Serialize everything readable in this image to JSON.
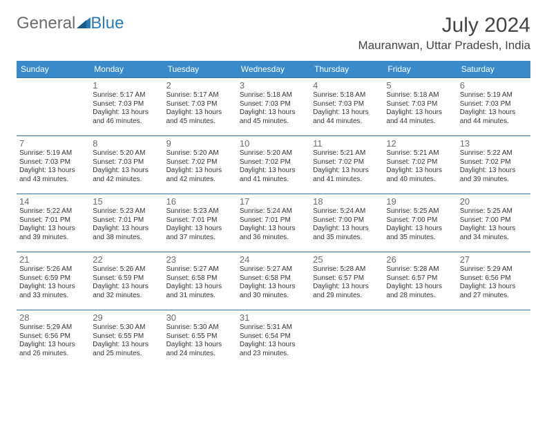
{
  "logo": {
    "text1": "General",
    "text2": "Blue"
  },
  "title": "July 2024",
  "location": "Mauranwan, Uttar Pradesh, India",
  "dayHeaders": [
    "Sunday",
    "Monday",
    "Tuesday",
    "Wednesday",
    "Thursday",
    "Friday",
    "Saturday"
  ],
  "colors": {
    "header_bg": "#3a8ac9",
    "header_text": "#ffffff",
    "border": "#2f6fa3",
    "daynum": "#6b6b6b",
    "logo_blue": "#2a7ab8"
  },
  "weeks": [
    [
      {
        "day": "",
        "sunrise": "",
        "sunset": "",
        "daylight": ""
      },
      {
        "day": "1",
        "sunrise": "Sunrise: 5:17 AM",
        "sunset": "Sunset: 7:03 PM",
        "daylight": "Daylight: 13 hours and 46 minutes."
      },
      {
        "day": "2",
        "sunrise": "Sunrise: 5:17 AM",
        "sunset": "Sunset: 7:03 PM",
        "daylight": "Daylight: 13 hours and 45 minutes."
      },
      {
        "day": "3",
        "sunrise": "Sunrise: 5:18 AM",
        "sunset": "Sunset: 7:03 PM",
        "daylight": "Daylight: 13 hours and 45 minutes."
      },
      {
        "day": "4",
        "sunrise": "Sunrise: 5:18 AM",
        "sunset": "Sunset: 7:03 PM",
        "daylight": "Daylight: 13 hours and 44 minutes."
      },
      {
        "day": "5",
        "sunrise": "Sunrise: 5:18 AM",
        "sunset": "Sunset: 7:03 PM",
        "daylight": "Daylight: 13 hours and 44 minutes."
      },
      {
        "day": "6",
        "sunrise": "Sunrise: 5:19 AM",
        "sunset": "Sunset: 7:03 PM",
        "daylight": "Daylight: 13 hours and 44 minutes."
      }
    ],
    [
      {
        "day": "7",
        "sunrise": "Sunrise: 5:19 AM",
        "sunset": "Sunset: 7:03 PM",
        "daylight": "Daylight: 13 hours and 43 minutes."
      },
      {
        "day": "8",
        "sunrise": "Sunrise: 5:20 AM",
        "sunset": "Sunset: 7:03 PM",
        "daylight": "Daylight: 13 hours and 42 minutes."
      },
      {
        "day": "9",
        "sunrise": "Sunrise: 5:20 AM",
        "sunset": "Sunset: 7:02 PM",
        "daylight": "Daylight: 13 hours and 42 minutes."
      },
      {
        "day": "10",
        "sunrise": "Sunrise: 5:20 AM",
        "sunset": "Sunset: 7:02 PM",
        "daylight": "Daylight: 13 hours and 41 minutes."
      },
      {
        "day": "11",
        "sunrise": "Sunrise: 5:21 AM",
        "sunset": "Sunset: 7:02 PM",
        "daylight": "Daylight: 13 hours and 41 minutes."
      },
      {
        "day": "12",
        "sunrise": "Sunrise: 5:21 AM",
        "sunset": "Sunset: 7:02 PM",
        "daylight": "Daylight: 13 hours and 40 minutes."
      },
      {
        "day": "13",
        "sunrise": "Sunrise: 5:22 AM",
        "sunset": "Sunset: 7:02 PM",
        "daylight": "Daylight: 13 hours and 39 minutes."
      }
    ],
    [
      {
        "day": "14",
        "sunrise": "Sunrise: 5:22 AM",
        "sunset": "Sunset: 7:01 PM",
        "daylight": "Daylight: 13 hours and 39 minutes."
      },
      {
        "day": "15",
        "sunrise": "Sunrise: 5:23 AM",
        "sunset": "Sunset: 7:01 PM",
        "daylight": "Daylight: 13 hours and 38 minutes."
      },
      {
        "day": "16",
        "sunrise": "Sunrise: 5:23 AM",
        "sunset": "Sunset: 7:01 PM",
        "daylight": "Daylight: 13 hours and 37 minutes."
      },
      {
        "day": "17",
        "sunrise": "Sunrise: 5:24 AM",
        "sunset": "Sunset: 7:01 PM",
        "daylight": "Daylight: 13 hours and 36 minutes."
      },
      {
        "day": "18",
        "sunrise": "Sunrise: 5:24 AM",
        "sunset": "Sunset: 7:00 PM",
        "daylight": "Daylight: 13 hours and 35 minutes."
      },
      {
        "day": "19",
        "sunrise": "Sunrise: 5:25 AM",
        "sunset": "Sunset: 7:00 PM",
        "daylight": "Daylight: 13 hours and 35 minutes."
      },
      {
        "day": "20",
        "sunrise": "Sunrise: 5:25 AM",
        "sunset": "Sunset: 7:00 PM",
        "daylight": "Daylight: 13 hours and 34 minutes."
      }
    ],
    [
      {
        "day": "21",
        "sunrise": "Sunrise: 5:26 AM",
        "sunset": "Sunset: 6:59 PM",
        "daylight": "Daylight: 13 hours and 33 minutes."
      },
      {
        "day": "22",
        "sunrise": "Sunrise: 5:26 AM",
        "sunset": "Sunset: 6:59 PM",
        "daylight": "Daylight: 13 hours and 32 minutes."
      },
      {
        "day": "23",
        "sunrise": "Sunrise: 5:27 AM",
        "sunset": "Sunset: 6:58 PM",
        "daylight": "Daylight: 13 hours and 31 minutes."
      },
      {
        "day": "24",
        "sunrise": "Sunrise: 5:27 AM",
        "sunset": "Sunset: 6:58 PM",
        "daylight": "Daylight: 13 hours and 30 minutes."
      },
      {
        "day": "25",
        "sunrise": "Sunrise: 5:28 AM",
        "sunset": "Sunset: 6:57 PM",
        "daylight": "Daylight: 13 hours and 29 minutes."
      },
      {
        "day": "26",
        "sunrise": "Sunrise: 5:28 AM",
        "sunset": "Sunset: 6:57 PM",
        "daylight": "Daylight: 13 hours and 28 minutes."
      },
      {
        "day": "27",
        "sunrise": "Sunrise: 5:29 AM",
        "sunset": "Sunset: 6:56 PM",
        "daylight": "Daylight: 13 hours and 27 minutes."
      }
    ],
    [
      {
        "day": "28",
        "sunrise": "Sunrise: 5:29 AM",
        "sunset": "Sunset: 6:56 PM",
        "daylight": "Daylight: 13 hours and 26 minutes."
      },
      {
        "day": "29",
        "sunrise": "Sunrise: 5:30 AM",
        "sunset": "Sunset: 6:55 PM",
        "daylight": "Daylight: 13 hours and 25 minutes."
      },
      {
        "day": "30",
        "sunrise": "Sunrise: 5:30 AM",
        "sunset": "Sunset: 6:55 PM",
        "daylight": "Daylight: 13 hours and 24 minutes."
      },
      {
        "day": "31",
        "sunrise": "Sunrise: 5:31 AM",
        "sunset": "Sunset: 6:54 PM",
        "daylight": "Daylight: 13 hours and 23 minutes."
      },
      {
        "day": "",
        "sunrise": "",
        "sunset": "",
        "daylight": ""
      },
      {
        "day": "",
        "sunrise": "",
        "sunset": "",
        "daylight": ""
      },
      {
        "day": "",
        "sunrise": "",
        "sunset": "",
        "daylight": ""
      }
    ]
  ]
}
